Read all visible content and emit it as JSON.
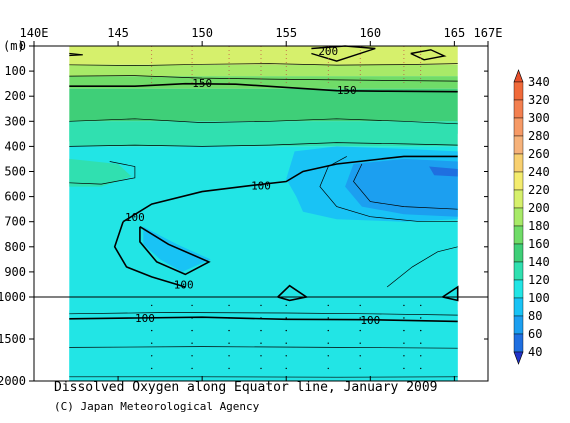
{
  "chart_data": {
    "type": "heatmap",
    "title": "Dissolved Oxygen along Equator line, January 2009",
    "credit": "(C) Japan Meteorological Agency",
    "y_unit_label": "(m)",
    "x_ticks": [
      {
        "lon": 140,
        "label": "140E"
      },
      {
        "lon": 145,
        "label": "145"
      },
      {
        "lon": 150,
        "label": "150"
      },
      {
        "lon": 155,
        "label": "155"
      },
      {
        "lon": 160,
        "label": "160"
      },
      {
        "lon": 165,
        "label": "165"
      },
      {
        "lon": 167,
        "label": "167E"
      }
    ],
    "xlim": [
      140,
      167
    ],
    "data_extent_lon": [
      142.1,
      165.2
    ],
    "y_ticks_upper": [
      0,
      100,
      200,
      300,
      400,
      500,
      600,
      700,
      800,
      900,
      1000
    ],
    "y_ticks_lower": [
      1000,
      1500,
      2000
    ],
    "y_split_depth": 1000,
    "y_max": 2000,
    "station_longitudes": [
      147,
      149.4,
      151.6,
      153.5,
      155,
      157.5,
      159.4,
      162,
      163
    ],
    "colorbar": {
      "levels": [
        40,
        60,
        80,
        100,
        120,
        140,
        160,
        180,
        200,
        220,
        240,
        260,
        280,
        300,
        320,
        340
      ],
      "colors": {
        "below40": "#2233c8",
        "40": "#1f6fe0",
        "60": "#1c9ff0",
        "80": "#19c3f5",
        "100": "#22e5e5",
        "120": "#30e0b0",
        "140": "#3fcf78",
        "160": "#70dc68",
        "180": "#a8ea68",
        "200": "#d6f06c",
        "220": "#f4ec6e",
        "240": "#f8d070",
        "260": "#f6b27a",
        "280": "#f69a66",
        "300": "#f38050",
        "320": "#f06a3a",
        "340": "#e8502c"
      }
    },
    "contour_labels": [
      {
        "value": "200",
        "lon": 157.5,
        "depth": 20
      },
      {
        "value": "150",
        "lon": 150.0,
        "depth": 148
      },
      {
        "value": "150",
        "lon": 158.6,
        "depth": 175
      },
      {
        "value": "100",
        "lon": 153.5,
        "depth": 555
      },
      {
        "value": "100",
        "lon": 146.0,
        "depth": 682
      },
      {
        "value": "100",
        "lon": 148.9,
        "depth": 950
      },
      {
        "value": "100",
        "lon": 146.6,
        "depth": 1250
      },
      {
        "value": "100",
        "lon": 160.0,
        "depth": 1275
      }
    ]
  }
}
